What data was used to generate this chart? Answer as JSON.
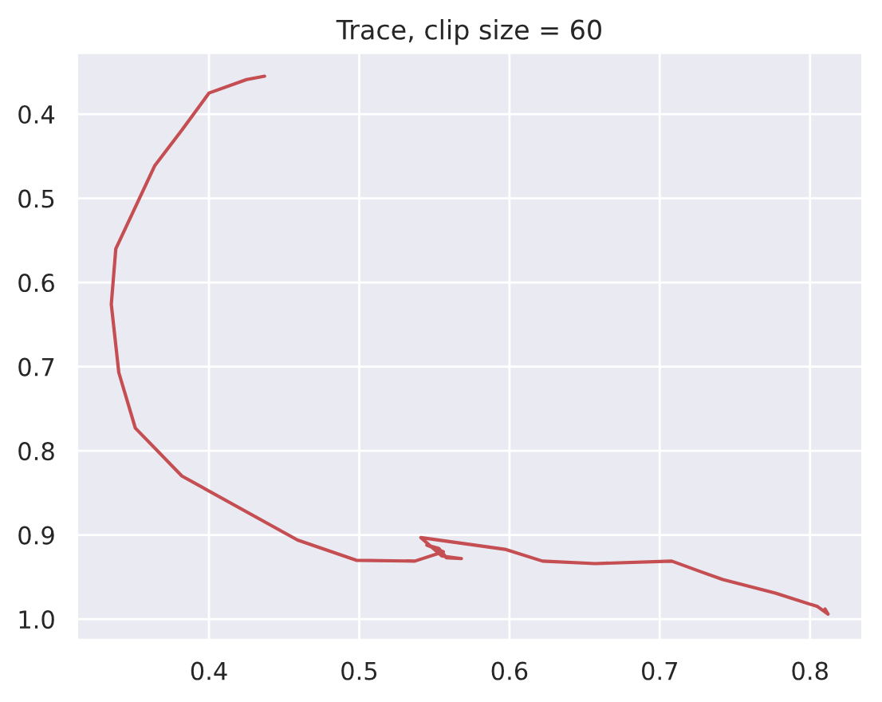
{
  "chart_data": {
    "type": "line",
    "title": "Trace, clip size = 60",
    "series": [
      {
        "color": "#c44e52",
        "x": [
          0.437,
          0.425,
          0.4,
          0.382,
          0.364,
          0.338,
          0.335,
          0.34,
          0.351,
          0.382,
          0.459,
          0.498,
          0.537,
          0.556,
          0.545,
          0.553,
          0.558,
          0.568,
          0.555,
          0.541,
          0.597,
          0.622,
          0.657,
          0.708,
          0.728,
          0.742,
          0.777,
          0.805,
          0.812,
          0.81
        ],
        "values": [
          0.355,
          0.359,
          0.375,
          0.419,
          0.461,
          0.56,
          0.626,
          0.707,
          0.773,
          0.83,
          0.906,
          0.93,
          0.931,
          0.92,
          0.912,
          0.916,
          0.927,
          0.928,
          0.925,
          0.903,
          0.917,
          0.931,
          0.934,
          0.931,
          0.944,
          0.953,
          0.969,
          0.985,
          0.994,
          0.988
        ]
      }
    ],
    "xlim": [
      0.312,
      0.835
    ],
    "ylim": [
      1.025,
      0.327
    ],
    "xticks": [
      0.4,
      0.5,
      0.6,
      0.7,
      0.8
    ],
    "yticks": [
      0.4,
      0.5,
      0.6,
      0.7,
      0.8,
      0.9,
      {
        "value": 1.0,
        "label": "1.0"
      }
    ],
    "grid": true,
    "marker": "none",
    "line_style": "solid",
    "legend": false
  }
}
